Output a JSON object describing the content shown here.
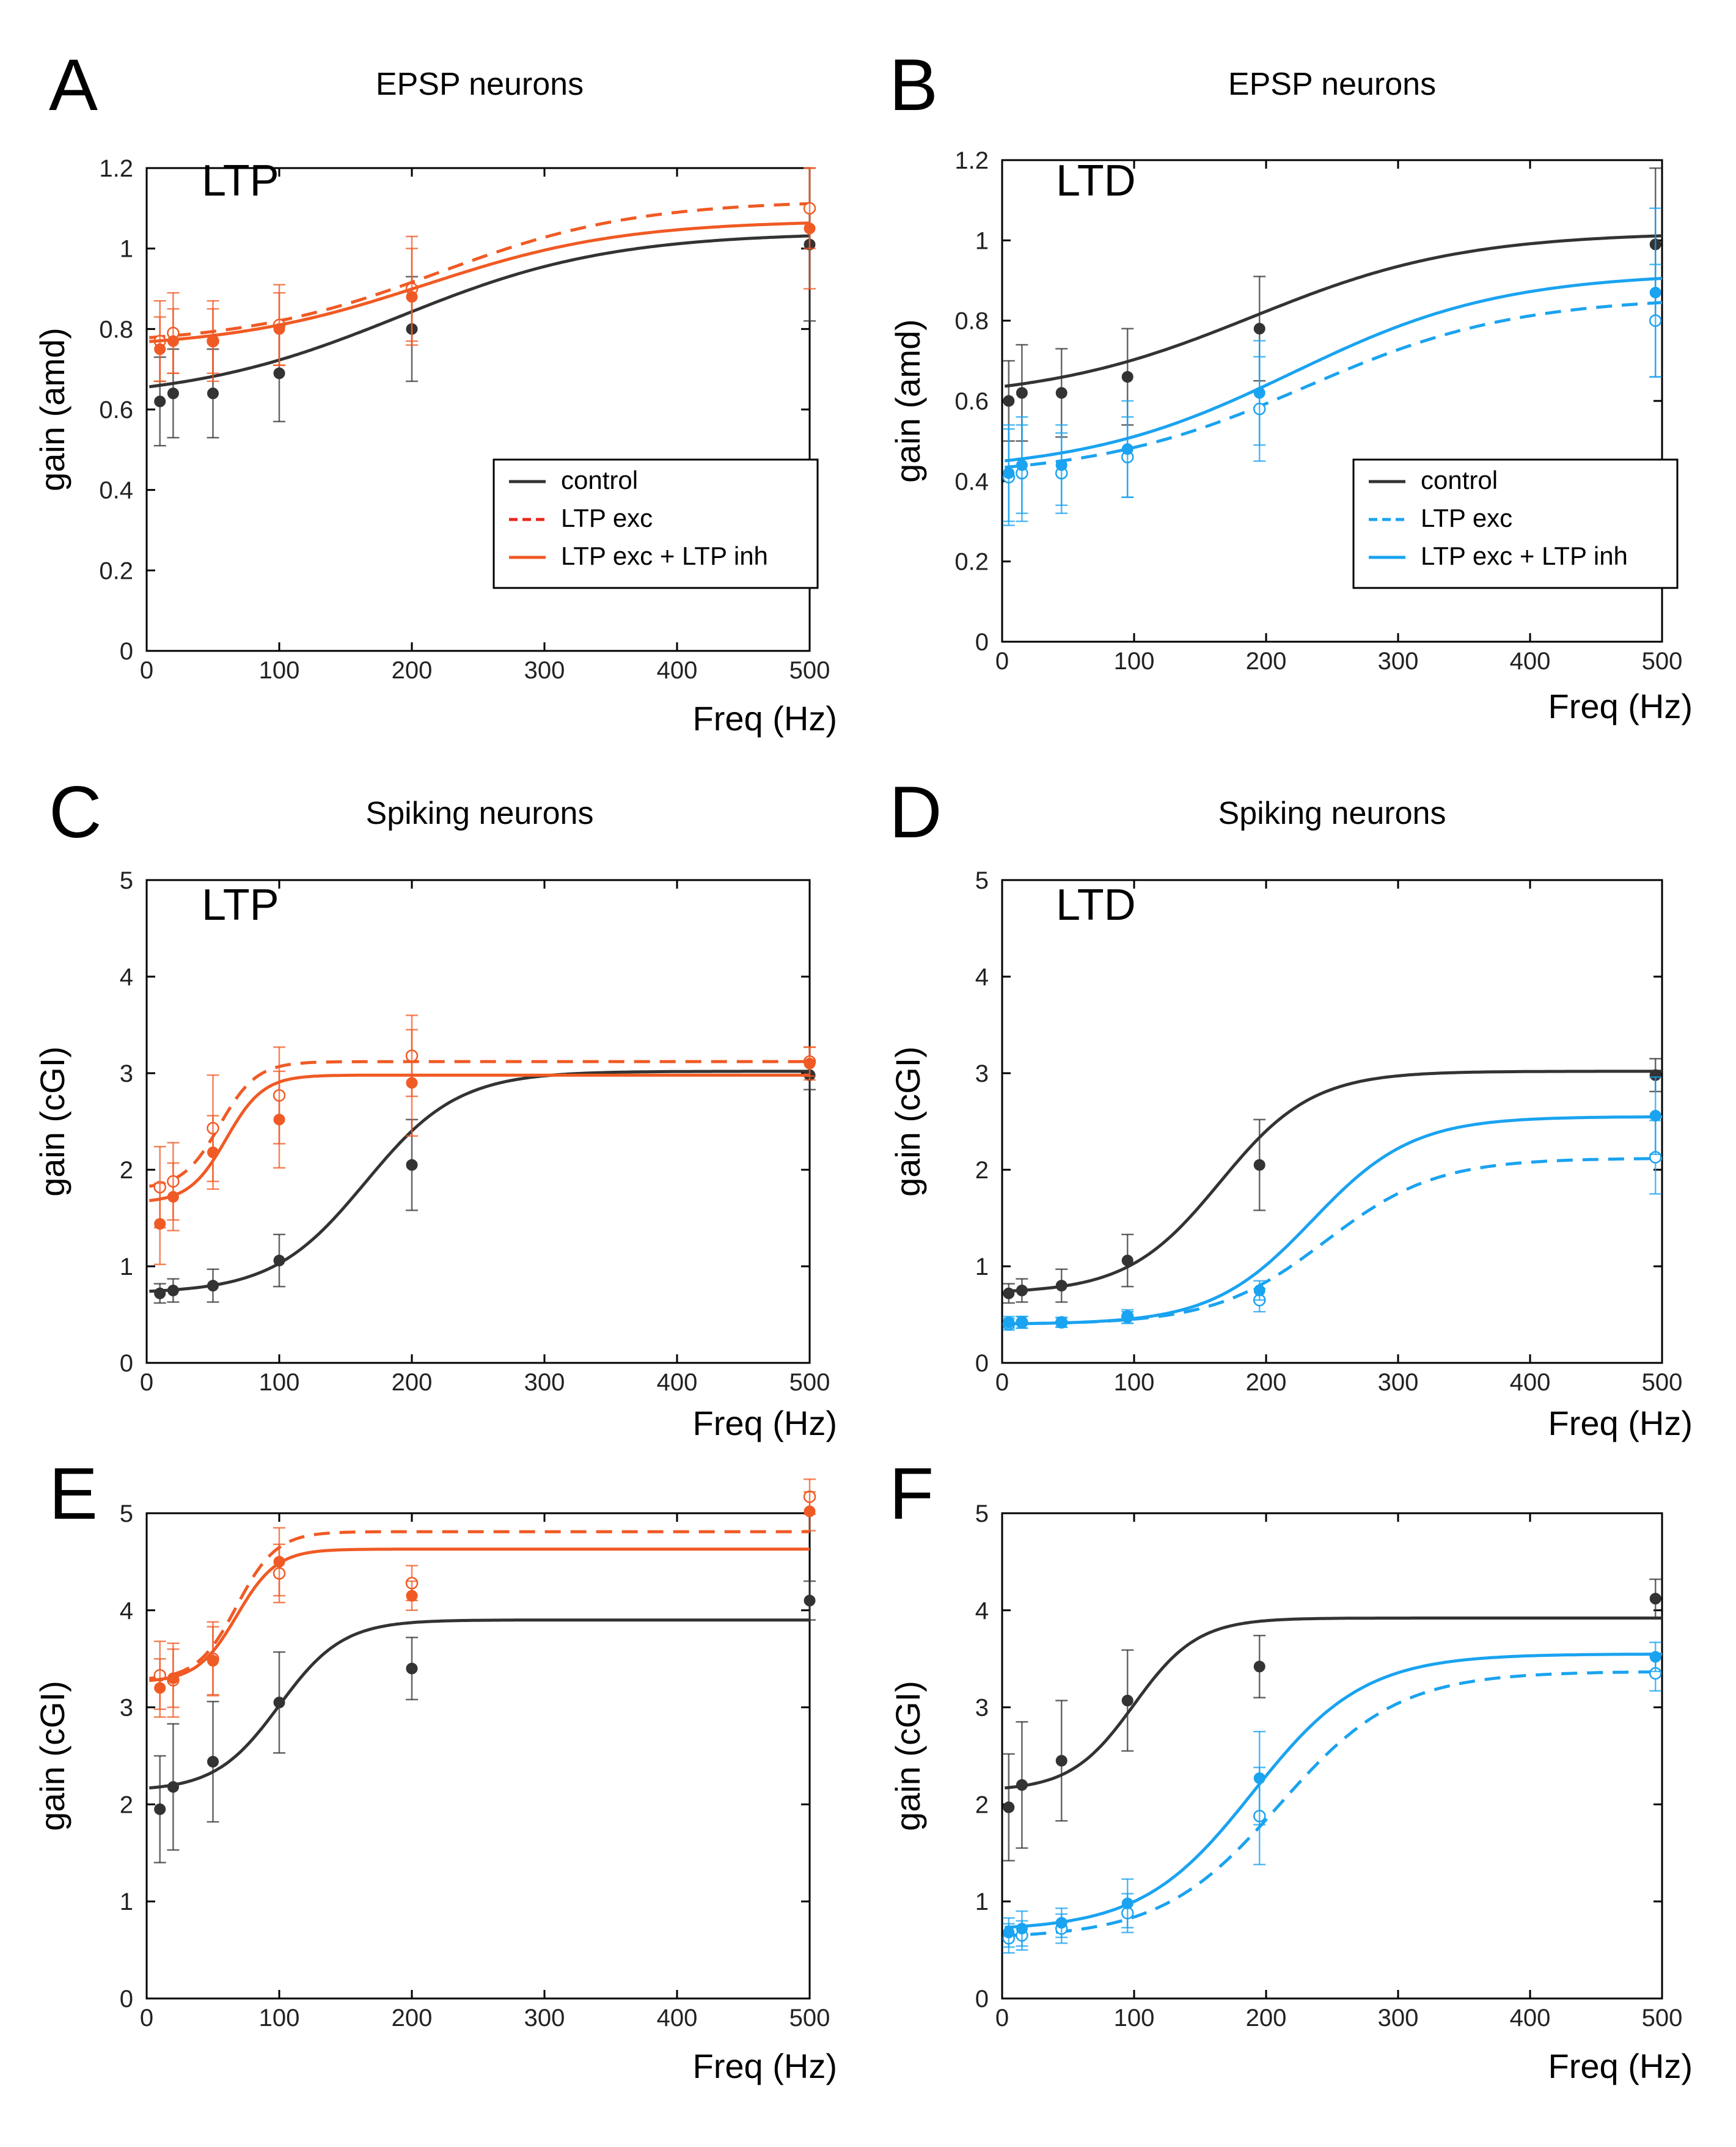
{
  "colors": {
    "control": "#333333",
    "ltp": "#f05a24",
    "ltd": "#1aa3f0",
    "ltp_legend_exc": "#e8281e",
    "axis": "#000000"
  },
  "chart_data": [
    {
      "id": "A",
      "letter": "A",
      "title": "EPSP neurons",
      "label": "LTP",
      "type": "line",
      "xlabel": "Freq (Hz)",
      "ylabel": "gain (amd)",
      "xlim": [
        0,
        500
      ],
      "ylim": [
        0,
        1.2
      ],
      "xticks": [
        0,
        100,
        200,
        300,
        400,
        500
      ],
      "yticks": [
        0,
        0.2,
        0.4,
        0.6,
        0.8,
        1,
        1.2
      ],
      "ytick_labels": [
        "0",
        "0.2",
        "0.4",
        "0.6",
        "0.8",
        "1",
        "1.2"
      ],
      "legend": [
        "control",
        "LTP exc",
        "LTP exc + LTP inh"
      ],
      "series": [
        {
          "name": "control",
          "color_key": "control",
          "dash": false,
          "open": false,
          "curve": {
            "base": 0.62,
            "amp": 0.42,
            "mid": 190,
            "k": 80
          },
          "points": [
            [
              10,
              0.62,
              0.11
            ],
            [
              20,
              0.64,
              0.11
            ],
            [
              50,
              0.64,
              0.11
            ],
            [
              100,
              0.69,
              0.12
            ],
            [
              200,
              0.8,
              0.13
            ],
            [
              500,
              1.01,
              0.19
            ]
          ]
        },
        {
          "name": "LTP exc",
          "color_key": "ltp",
          "dash": true,
          "open": true,
          "curve": {
            "base": 0.76,
            "amp": 0.36,
            "mid": 220,
            "k": 75
          },
          "points": [
            [
              10,
              0.77,
              0.1
            ],
            [
              20,
              0.79,
              0.1
            ],
            [
              50,
              0.77,
              0.1
            ],
            [
              100,
              0.81,
              0.1
            ],
            [
              200,
              0.9,
              0.13
            ],
            [
              500,
              1.1,
              0.1
            ]
          ]
        },
        {
          "name": "LTP exc + LTP inh",
          "color_key": "ltp",
          "dash": false,
          "open": false,
          "curve": {
            "base": 0.75,
            "amp": 0.32,
            "mid": 210,
            "k": 75
          },
          "points": [
            [
              10,
              0.75,
              0.08
            ],
            [
              20,
              0.77,
              0.08
            ],
            [
              50,
              0.77,
              0.08
            ],
            [
              100,
              0.8,
              0.09
            ],
            [
              200,
              0.88,
              0.12
            ],
            [
              500,
              1.05,
              0.15
            ]
          ]
        }
      ]
    },
    {
      "id": "B",
      "letter": "B",
      "title": "EPSP neurons",
      "label": "LTD",
      "type": "line",
      "xlabel": "Freq (Hz)",
      "ylabel": "gain (amd)",
      "xlim": [
        0,
        500
      ],
      "ylim": [
        0,
        1.2
      ],
      "xticks": [
        0,
        100,
        200,
        300,
        400,
        500
      ],
      "yticks": [
        0,
        0.2,
        0.4,
        0.6,
        0.8,
        1,
        1.2
      ],
      "ytick_labels": [
        "0",
        "0.2",
        "0.4",
        "0.6",
        "0.8",
        "1",
        "1.2"
      ],
      "legend": [
        "control",
        "LTP exc",
        "LTP exc + LTP inh"
      ],
      "series": [
        {
          "name": "control",
          "color_key": "control",
          "dash": false,
          "open": false,
          "curve": {
            "base": 0.6,
            "amp": 0.42,
            "mid": 190,
            "k": 80
          },
          "points": [
            [
              5,
              0.6,
              0.1
            ],
            [
              15,
              0.62,
              0.12
            ],
            [
              45,
              0.62,
              0.11
            ],
            [
              95,
              0.66,
              0.12
            ],
            [
              195,
              0.78,
              0.13
            ],
            [
              495,
              0.99,
              0.19
            ]
          ]
        },
        {
          "name": "LTP exc",
          "color_key": "ltd",
          "dash": true,
          "open": true,
          "curve": {
            "base": 0.41,
            "amp": 0.45,
            "mid": 230,
            "k": 80
          },
          "points": [
            [
              5,
              0.41,
              0.12
            ],
            [
              15,
              0.42,
              0.12
            ],
            [
              45,
              0.42,
              0.1
            ],
            [
              95,
              0.46,
              0.1
            ],
            [
              195,
              0.58,
              0.13
            ],
            [
              495,
              0.8,
              0.14
            ]
          ]
        },
        {
          "name": "LTP exc + LTP inh",
          "color_key": "ltd",
          "dash": false,
          "open": false,
          "curve": {
            "base": 0.42,
            "amp": 0.5,
            "mid": 220,
            "k": 80
          },
          "points": [
            [
              5,
              0.42,
              0.12
            ],
            [
              15,
              0.44,
              0.12
            ],
            [
              45,
              0.44,
              0.1
            ],
            [
              95,
              0.48,
              0.12
            ],
            [
              195,
              0.62,
              0.13
            ],
            [
              495,
              0.87,
              0.21
            ]
          ]
        }
      ]
    },
    {
      "id": "C",
      "letter": "C",
      "title": "Spiking neurons",
      "label": "LTP",
      "type": "line",
      "xlabel": "Freq (Hz)",
      "ylabel": "gain (cGI)",
      "xlim": [
        0,
        500
      ],
      "ylim": [
        0,
        5
      ],
      "xticks": [
        0,
        100,
        200,
        300,
        400,
        500
      ],
      "yticks": [
        0,
        1,
        2,
        3,
        4,
        5
      ],
      "ytick_labels": [
        "0",
        "1",
        "2",
        "3",
        "4",
        "5"
      ],
      "legend": [],
      "series": [
        {
          "name": "control",
          "color_key": "control",
          "dash": false,
          "open": false,
          "curve": {
            "base": 0.72,
            "amp": 2.3,
            "mid": 165,
            "k": 35
          },
          "points": [
            [
              10,
              0.72,
              0.1
            ],
            [
              20,
              0.75,
              0.12
            ],
            [
              50,
              0.8,
              0.17
            ],
            [
              100,
              1.06,
              0.27
            ],
            [
              200,
              2.05,
              0.47
            ],
            [
              500,
              2.98,
              0.15
            ]
          ]
        },
        {
          "name": "LTP exc",
          "color_key": "ltp",
          "dash": true,
          "open": true,
          "curve": {
            "base": 1.8,
            "amp": 1.32,
            "mid": 55,
            "k": 14
          },
          "points": [
            [
              10,
              1.82,
              0.42
            ],
            [
              20,
              1.88,
              0.4
            ],
            [
              50,
              2.43,
              0.55
            ],
            [
              100,
              2.77,
              0.5
            ],
            [
              200,
              3.18,
              0.42
            ],
            [
              500,
              3.12,
              0.15
            ]
          ]
        },
        {
          "name": "LTP exc + LTP inh",
          "color_key": "ltp",
          "dash": false,
          "open": false,
          "curve": {
            "base": 1.66,
            "amp": 1.32,
            "mid": 60,
            "k": 14
          },
          "points": [
            [
              10,
              1.44,
              0.42
            ],
            [
              20,
              1.72,
              0.35
            ],
            [
              50,
              2.18,
              0.38
            ],
            [
              100,
              2.52,
              0.5
            ],
            [
              200,
              2.9,
              0.55
            ],
            [
              500,
              3.1,
              0.17
            ]
          ]
        }
      ]
    },
    {
      "id": "D",
      "letter": "D",
      "title": "Spiking neurons",
      "label": "LTD",
      "type": "line",
      "xlabel": "Freq (Hz)",
      "ylabel": "gain (cGI)",
      "xlim": [
        0,
        500
      ],
      "ylim": [
        0,
        5
      ],
      "xticks": [
        0,
        100,
        200,
        300,
        400,
        500
      ],
      "yticks": [
        0,
        1,
        2,
        3,
        4,
        5
      ],
      "ytick_labels": [
        "0",
        "1",
        "2",
        "3",
        "4",
        "5"
      ],
      "legend": [],
      "series": [
        {
          "name": "control",
          "color_key": "control",
          "dash": false,
          "open": false,
          "curve": {
            "base": 0.72,
            "amp": 2.3,
            "mid": 165,
            "k": 35
          },
          "points": [
            [
              5,
              0.72,
              0.1
            ],
            [
              15,
              0.75,
              0.12
            ],
            [
              45,
              0.8,
              0.17
            ],
            [
              95,
              1.06,
              0.27
            ],
            [
              195,
              2.05,
              0.47
            ],
            [
              495,
              2.98,
              0.17
            ]
          ]
        },
        {
          "name": "LTP exc",
          "color_key": "ltd",
          "dash": true,
          "open": true,
          "curve": {
            "base": 0.4,
            "amp": 1.72,
            "mid": 245,
            "k": 42
          },
          "points": [
            [
              5,
              0.4,
              0.06
            ],
            [
              15,
              0.42,
              0.06
            ],
            [
              45,
              0.42,
              0.05
            ],
            [
              95,
              0.48,
              0.07
            ],
            [
              195,
              0.65,
              0.12
            ],
            [
              495,
              2.13,
              0.38
            ]
          ]
        },
        {
          "name": "LTP exc + LTP inh",
          "color_key": "ltd",
          "dash": false,
          "open": false,
          "curve": {
            "base": 0.4,
            "amp": 2.15,
            "mid": 235,
            "k": 38
          },
          "points": [
            [
              5,
              0.42,
              0.06
            ],
            [
              15,
              0.42,
              0.06
            ],
            [
              45,
              0.42,
              0.05
            ],
            [
              95,
              0.47,
              0.06
            ],
            [
              195,
              0.75,
              0.1
            ],
            [
              495,
              2.56,
              0.4
            ]
          ]
        }
      ]
    },
    {
      "id": "E",
      "letter": "E",
      "title": "",
      "label": "",
      "type": "line",
      "xlabel": "Freq (Hz)",
      "ylabel": "gain (cGI)",
      "xlim": [
        0,
        500
      ],
      "ylim": [
        0,
        5
      ],
      "xticks": [
        0,
        100,
        200,
        300,
        400,
        500
      ],
      "yticks": [
        0,
        1,
        2,
        3,
        4,
        5
      ],
      "ytick_labels": [
        "0",
        "1",
        "2",
        "3",
        "4",
        "5"
      ],
      "legend": [],
      "series": [
        {
          "name": "control",
          "color_key": "control",
          "dash": false,
          "open": false,
          "curve": {
            "base": 2.14,
            "amp": 1.76,
            "mid": 100,
            "k": 24
          },
          "points": [
            [
              10,
              1.95,
              0.55
            ],
            [
              20,
              2.18,
              0.65
            ],
            [
              50,
              2.44,
              0.62
            ],
            [
              100,
              3.05,
              0.52
            ],
            [
              200,
              3.4,
              0.32
            ],
            [
              500,
              4.1,
              0.2
            ]
          ]
        },
        {
          "name": "LTP exc",
          "color_key": "ltp",
          "dash": true,
          "open": true,
          "curve": {
            "base": 3.28,
            "amp": 1.53,
            "mid": 68,
            "k": 15
          },
          "points": [
            [
              10,
              3.33,
              0.35
            ],
            [
              20,
              3.28,
              0.38
            ],
            [
              50,
              3.5,
              0.38
            ],
            [
              100,
              4.38,
              0.3
            ],
            [
              200,
              4.28,
              0.18
            ],
            [
              500,
              5.17,
              0.18
            ]
          ]
        },
        {
          "name": "LTP exc + LTP inh",
          "color_key": "ltp",
          "dash": false,
          "open": false,
          "curve": {
            "base": 3.26,
            "amp": 1.37,
            "mid": 68,
            "k": 15
          },
          "points": [
            [
              10,
              3.2,
              0.3
            ],
            [
              20,
              3.3,
              0.3
            ],
            [
              50,
              3.48,
              0.35
            ],
            [
              100,
              4.5,
              0.35
            ],
            [
              200,
              4.15,
              0.15
            ],
            [
              500,
              5.02,
              0.2
            ]
          ]
        }
      ]
    },
    {
      "id": "F",
      "letter": "F",
      "title": "",
      "label": "",
      "type": "line",
      "xlabel": "Freq (Hz)",
      "ylabel": "gain (cGI)",
      "xlim": [
        0,
        500
      ],
      "ylim": [
        0,
        5
      ],
      "xticks": [
        0,
        100,
        200,
        300,
        400,
        500
      ],
      "yticks": [
        0,
        1,
        2,
        3,
        4,
        5
      ],
      "ytick_labels": [
        "0",
        "1",
        "2",
        "3",
        "4",
        "5"
      ],
      "legend": [],
      "series": [
        {
          "name": "control",
          "color_key": "control",
          "dash": false,
          "open": false,
          "curve": {
            "base": 2.14,
            "amp": 1.78,
            "mid": 100,
            "k": 24
          },
          "points": [
            [
              5,
              1.97,
              0.55
            ],
            [
              15,
              2.2,
              0.65
            ],
            [
              45,
              2.45,
              0.62
            ],
            [
              95,
              3.07,
              0.52
            ],
            [
              195,
              3.42,
              0.32
            ],
            [
              495,
              4.12,
              0.2
            ]
          ]
        },
        {
          "name": "LTP exc",
          "color_key": "ltd",
          "dash": true,
          "open": true,
          "curve": {
            "base": 0.62,
            "amp": 2.75,
            "mid": 210,
            "k": 45
          },
          "points": [
            [
              5,
              0.62,
              0.15
            ],
            [
              15,
              0.65,
              0.15
            ],
            [
              45,
              0.72,
              0.15
            ],
            [
              95,
              0.88,
              0.2
            ],
            [
              195,
              1.88,
              0.5
            ],
            [
              495,
              3.35,
              0.18
            ]
          ]
        },
        {
          "name": "LTP exc + LTP inh",
          "color_key": "ltd",
          "dash": false,
          "open": false,
          "curve": {
            "base": 0.7,
            "amp": 2.85,
            "mid": 190,
            "k": 42
          },
          "points": [
            [
              5,
              0.68,
              0.15
            ],
            [
              15,
              0.72,
              0.18
            ],
            [
              45,
              0.78,
              0.15
            ],
            [
              95,
              0.98,
              0.25
            ],
            [
              195,
              2.27,
              0.48
            ],
            [
              495,
              3.52,
              0.15
            ]
          ]
        }
      ]
    }
  ]
}
